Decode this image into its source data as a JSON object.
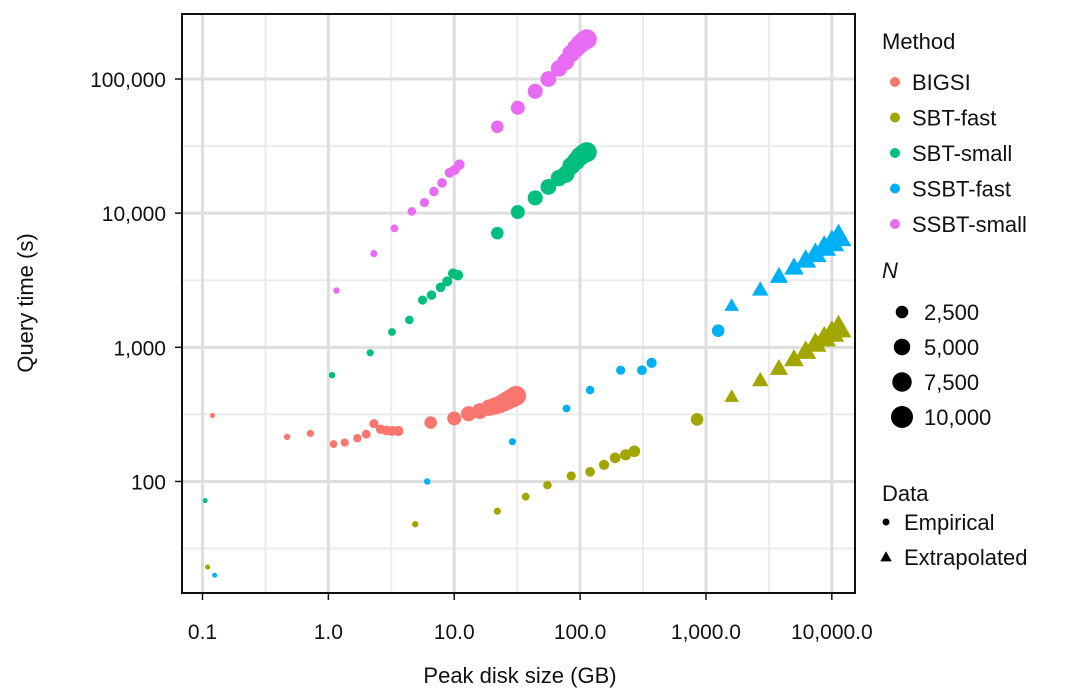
{
  "chart_data": {
    "type": "scatter",
    "xlabel": "Peak disk size (GB)",
    "ylabel": "Query time (s)",
    "x_scale": "log",
    "y_scale": "log",
    "xlim": [
      0.07,
      15000
    ],
    "ylim": [
      15,
      300000
    ],
    "x_ticks": [
      0.1,
      1,
      10,
      100,
      1000,
      10000
    ],
    "x_tick_labels": [
      "0.1",
      "1.0",
      "10.0",
      "100.0",
      "1,000.0",
      "10,000.0"
    ],
    "y_ticks": [
      100,
      1000,
      10000,
      100000
    ],
    "y_tick_labels": [
      "100",
      "1,000",
      "10,000",
      "100,000"
    ],
    "grid": true,
    "legend_placement": "right",
    "legend": {
      "method_title": "Method",
      "size_title": "N",
      "data_title": "Data",
      "size_entries": [
        {
          "label": "2,500",
          "n": 2500
        },
        {
          "label": "5,000",
          "n": 5000
        },
        {
          "label": "7,500",
          "n": 7500
        },
        {
          "label": "10,000",
          "n": 10000
        }
      ],
      "data_entries": [
        {
          "label": "Empirical",
          "shape": "circle"
        },
        {
          "label": "Extrapolated",
          "shape": "triangle"
        }
      ]
    },
    "series": [
      {
        "name": "BIGSI",
        "color": "#F8766D",
        "points": [
          {
            "x": 0.12,
            "y": 310,
            "n": 100,
            "kind": "empirical"
          },
          {
            "x": 0.47,
            "y": 215,
            "n": 300,
            "kind": "empirical"
          },
          {
            "x": 0.72,
            "y": 228,
            "n": 450,
            "kind": "empirical"
          },
          {
            "x": 1.1,
            "y": 190,
            "n": 600,
            "kind": "empirical"
          },
          {
            "x": 1.35,
            "y": 195,
            "n": 700,
            "kind": "empirical"
          },
          {
            "x": 1.7,
            "y": 210,
            "n": 800,
            "kind": "empirical"
          },
          {
            "x": 2.0,
            "y": 225,
            "n": 900,
            "kind": "empirical"
          },
          {
            "x": 2.3,
            "y": 270,
            "n": 1000,
            "kind": "empirical"
          },
          {
            "x": 2.6,
            "y": 245,
            "n": 1100,
            "kind": "empirical"
          },
          {
            "x": 2.9,
            "y": 240,
            "n": 1200,
            "kind": "empirical"
          },
          {
            "x": 3.2,
            "y": 238,
            "n": 1300,
            "kind": "empirical"
          },
          {
            "x": 3.6,
            "y": 238,
            "n": 1400,
            "kind": "empirical"
          },
          {
            "x": 6.5,
            "y": 275,
            "n": 2500,
            "kind": "empirical"
          },
          {
            "x": 10,
            "y": 295,
            "n": 3300,
            "kind": "empirical"
          },
          {
            "x": 13,
            "y": 320,
            "n": 4000,
            "kind": "empirical"
          },
          {
            "x": 16,
            "y": 335,
            "n": 4500,
            "kind": "empirical"
          },
          {
            "x": 19,
            "y": 355,
            "n": 5000,
            "kind": "empirical"
          },
          {
            "x": 21,
            "y": 365,
            "n": 5500,
            "kind": "empirical"
          },
          {
            "x": 23,
            "y": 375,
            "n": 6000,
            "kind": "empirical"
          },
          {
            "x": 25,
            "y": 390,
            "n": 6500,
            "kind": "empirical"
          },
          {
            "x": 27,
            "y": 405,
            "n": 7000,
            "kind": "empirical"
          },
          {
            "x": 29,
            "y": 420,
            "n": 7500,
            "kind": "empirical"
          },
          {
            "x": 31,
            "y": 435,
            "n": 8000,
            "kind": "empirical"
          }
        ]
      },
      {
        "name": "SBT-fast",
        "color": "#A3A500",
        "points": [
          {
            "x": 0.11,
            "y": 23,
            "n": 100,
            "kind": "empirical"
          },
          {
            "x": 4.9,
            "y": 48,
            "n": 300,
            "kind": "empirical"
          },
          {
            "x": 22,
            "y": 60,
            "n": 450,
            "kind": "empirical"
          },
          {
            "x": 37,
            "y": 77,
            "n": 600,
            "kind": "empirical"
          },
          {
            "x": 55,
            "y": 94,
            "n": 800,
            "kind": "empirical"
          },
          {
            "x": 85,
            "y": 110,
            "n": 1000,
            "kind": "empirical"
          },
          {
            "x": 120,
            "y": 118,
            "n": 1200,
            "kind": "empirical"
          },
          {
            "x": 155,
            "y": 133,
            "n": 1400,
            "kind": "empirical"
          },
          {
            "x": 190,
            "y": 150,
            "n": 1600,
            "kind": "empirical"
          },
          {
            "x": 230,
            "y": 158,
            "n": 1800,
            "kind": "empirical"
          },
          {
            "x": 270,
            "y": 168,
            "n": 2000,
            "kind": "empirical"
          },
          {
            "x": 850,
            "y": 290,
            "n": 2500,
            "kind": "empirical"
          },
          {
            "x": 1600,
            "y": 430,
            "n": 2500,
            "kind": "extrapolated"
          },
          {
            "x": 2700,
            "y": 570,
            "n": 3500,
            "kind": "extrapolated"
          },
          {
            "x": 3800,
            "y": 700,
            "n": 4500,
            "kind": "extrapolated"
          },
          {
            "x": 5000,
            "y": 820,
            "n": 5500,
            "kind": "extrapolated"
          },
          {
            "x": 6200,
            "y": 940,
            "n": 6500,
            "kind": "extrapolated"
          },
          {
            "x": 7400,
            "y": 1070,
            "n": 7500,
            "kind": "extrapolated"
          },
          {
            "x": 8700,
            "y": 1180,
            "n": 8500,
            "kind": "extrapolated"
          },
          {
            "x": 10000,
            "y": 1290,
            "n": 9500,
            "kind": "extrapolated"
          },
          {
            "x": 11300,
            "y": 1400,
            "n": 10500,
            "kind": "extrapolated"
          }
        ]
      },
      {
        "name": "SBT-small",
        "color": "#00BF7D",
        "points": [
          {
            "x": 0.105,
            "y": 72,
            "n": 100,
            "kind": "empirical"
          },
          {
            "x": 1.07,
            "y": 620,
            "n": 300,
            "kind": "empirical"
          },
          {
            "x": 2.15,
            "y": 910,
            "n": 450,
            "kind": "empirical"
          },
          {
            "x": 3.2,
            "y": 1300,
            "n": 600,
            "kind": "empirical"
          },
          {
            "x": 4.4,
            "y": 1600,
            "n": 800,
            "kind": "empirical"
          },
          {
            "x": 5.6,
            "y": 2250,
            "n": 1000,
            "kind": "empirical"
          },
          {
            "x": 6.6,
            "y": 2450,
            "n": 1100,
            "kind": "empirical"
          },
          {
            "x": 7.8,
            "y": 2800,
            "n": 1200,
            "kind": "empirical"
          },
          {
            "x": 8.8,
            "y": 3100,
            "n": 1300,
            "kind": "empirical"
          },
          {
            "x": 9.8,
            "y": 3550,
            "n": 1400,
            "kind": "empirical"
          },
          {
            "x": 10.7,
            "y": 3450,
            "n": 1500,
            "kind": "empirical"
          },
          {
            "x": 22,
            "y": 7100,
            "n": 2500,
            "kind": "empirical"
          },
          {
            "x": 32,
            "y": 10200,
            "n": 3300,
            "kind": "empirical"
          },
          {
            "x": 44,
            "y": 13000,
            "n": 4000,
            "kind": "empirical"
          },
          {
            "x": 56,
            "y": 15700,
            "n": 4500,
            "kind": "empirical"
          },
          {
            "x": 68,
            "y": 18300,
            "n": 5000,
            "kind": "empirical"
          },
          {
            "x": 77,
            "y": 19500,
            "n": 5500,
            "kind": "empirical"
          },
          {
            "x": 85,
            "y": 22500,
            "n": 6000,
            "kind": "empirical"
          },
          {
            "x": 93,
            "y": 24500,
            "n": 6500,
            "kind": "empirical"
          },
          {
            "x": 100,
            "y": 26500,
            "n": 7000,
            "kind": "empirical"
          },
          {
            "x": 107,
            "y": 27800,
            "n": 7500,
            "kind": "empirical"
          },
          {
            "x": 113,
            "y": 28500,
            "n": 8000,
            "kind": "empirical"
          }
        ]
      },
      {
        "name": "SSBT-fast",
        "color": "#00B0F6",
        "points": [
          {
            "x": 0.125,
            "y": 20,
            "n": 100,
            "kind": "empirical"
          },
          {
            "x": 6.1,
            "y": 100,
            "n": 300,
            "kind": "empirical"
          },
          {
            "x": 29,
            "y": 198,
            "n": 450,
            "kind": "empirical"
          },
          {
            "x": 78,
            "y": 350,
            "n": 600,
            "kind": "empirical"
          },
          {
            "x": 120,
            "y": 480,
            "n": 800,
            "kind": "empirical"
          },
          {
            "x": 210,
            "y": 675,
            "n": 1000,
            "kind": "empirical"
          },
          {
            "x": 310,
            "y": 675,
            "n": 1200,
            "kind": "empirical"
          },
          {
            "x": 370,
            "y": 765,
            "n": 1400,
            "kind": "empirical"
          },
          {
            "x": 1250,
            "y": 1330,
            "n": 2500,
            "kind": "empirical"
          },
          {
            "x": 1600,
            "y": 2050,
            "n": 2500,
            "kind": "extrapolated"
          },
          {
            "x": 2700,
            "y": 2700,
            "n": 3500,
            "kind": "extrapolated"
          },
          {
            "x": 3800,
            "y": 3400,
            "n": 4500,
            "kind": "extrapolated"
          },
          {
            "x": 5000,
            "y": 3950,
            "n": 5500,
            "kind": "extrapolated"
          },
          {
            "x": 6200,
            "y": 4500,
            "n": 6500,
            "kind": "extrapolated"
          },
          {
            "x": 7400,
            "y": 5000,
            "n": 7500,
            "kind": "extrapolated"
          },
          {
            "x": 8700,
            "y": 5600,
            "n": 8500,
            "kind": "extrapolated"
          },
          {
            "x": 10000,
            "y": 6100,
            "n": 9500,
            "kind": "extrapolated"
          },
          {
            "x": 11300,
            "y": 6700,
            "n": 10500,
            "kind": "extrapolated"
          }
        ]
      },
      {
        "name": "SSBT-small",
        "color": "#E76BF3",
        "points": [
          {
            "x": 1.16,
            "y": 2650,
            "n": 300,
            "kind": "empirical"
          },
          {
            "x": 2.3,
            "y": 5000,
            "n": 450,
            "kind": "empirical"
          },
          {
            "x": 3.35,
            "y": 7700,
            "n": 600,
            "kind": "empirical"
          },
          {
            "x": 4.6,
            "y": 10300,
            "n": 800,
            "kind": "empirical"
          },
          {
            "x": 5.8,
            "y": 12000,
            "n": 1000,
            "kind": "empirical"
          },
          {
            "x": 6.9,
            "y": 14500,
            "n": 1100,
            "kind": "empirical"
          },
          {
            "x": 8.0,
            "y": 16800,
            "n": 1200,
            "kind": "empirical"
          },
          {
            "x": 9.2,
            "y": 20000,
            "n": 1300,
            "kind": "empirical"
          },
          {
            "x": 10.1,
            "y": 21000,
            "n": 1400,
            "kind": "empirical"
          },
          {
            "x": 11.0,
            "y": 23000,
            "n": 1500,
            "kind": "empirical"
          },
          {
            "x": 22,
            "y": 44000,
            "n": 2500,
            "kind": "empirical"
          },
          {
            "x": 32,
            "y": 61000,
            "n": 3300,
            "kind": "empirical"
          },
          {
            "x": 44,
            "y": 81000,
            "n": 4000,
            "kind": "empirical"
          },
          {
            "x": 56,
            "y": 100000,
            "n": 4500,
            "kind": "empirical"
          },
          {
            "x": 68,
            "y": 120000,
            "n": 5000,
            "kind": "empirical"
          },
          {
            "x": 77,
            "y": 135000,
            "n": 5500,
            "kind": "empirical"
          },
          {
            "x": 85,
            "y": 155000,
            "n": 6000,
            "kind": "empirical"
          },
          {
            "x": 93,
            "y": 170000,
            "n": 6500,
            "kind": "empirical"
          },
          {
            "x": 100,
            "y": 182000,
            "n": 7000,
            "kind": "empirical"
          },
          {
            "x": 107,
            "y": 192000,
            "n": 7500,
            "kind": "empirical"
          },
          {
            "x": 113,
            "y": 198000,
            "n": 8000,
            "kind": "empirical"
          }
        ]
      }
    ]
  }
}
